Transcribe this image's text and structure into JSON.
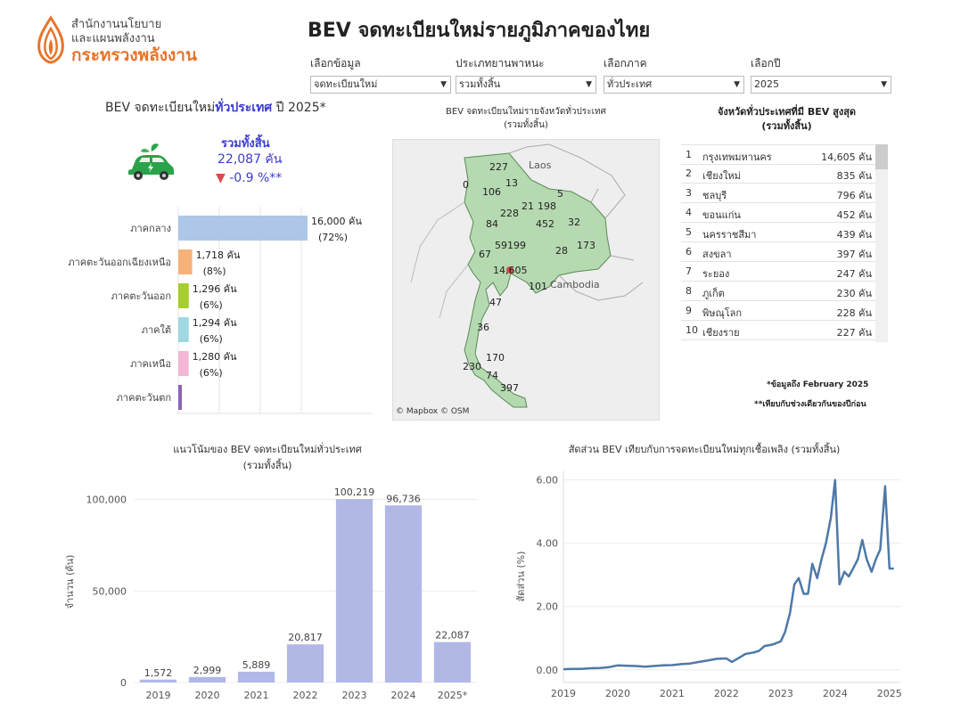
{
  "header": {
    "org_line1": "สำนักงานนโยบาย",
    "org_line2": "และแผนพลังงาน",
    "org_line3": "กระทรวงพลังงาน",
    "title": "BEV จดทะเบียนใหม่รายภูมิภาคของไทย"
  },
  "filters": [
    {
      "label": "เลือกข้อมูล",
      "value": "จดทะเบียนใหม่"
    },
    {
      "label": "ประเภทยานพาหนะ",
      "value": "รวมทั้งสิ้น"
    },
    {
      "label": "เลือกภาค",
      "value": "ทั่วประเทศ"
    },
    {
      "label": "เลือกปี",
      "value": "2025"
    }
  ],
  "kpi": {
    "title_prefix": "BEV จดทะเบียนใหม่",
    "title_highlight": "ทั่วประเทศ",
    "title_suffix": " ปี  2025*",
    "total_label": "รวมทั้งสิ้น",
    "total_value": "22,087 คัน",
    "change": "-0.9  %**",
    "change_symbol": "▼",
    "icon": "electric-car-icon"
  },
  "chart_data": [
    {
      "type": "bar",
      "orientation": "horizontal",
      "categories": [
        "ภาคกลาง",
        "ภาคตะวันออกเฉียงเหนือ",
        "ภาคตะวันออก",
        "ภาคใต้",
        "ภาคเหนือ",
        "ภาคตะวันตก"
      ],
      "values": [
        16000,
        1718,
        1296,
        1294,
        1280,
        100
      ],
      "value_labels": [
        "16,000 คัน",
        "1,718 คัน",
        "1,296 คัน",
        "1,294 คัน",
        "1,280 คัน",
        ""
      ],
      "pct_labels": [
        "(72%)",
        "(8%)",
        "(6%)",
        "(6%)",
        "(6%)",
        ""
      ],
      "colors": [
        "#aec7e8",
        "#f7b27a",
        "#a5cf2d",
        "#9fd8e0",
        "#f4b6d2",
        "#8e63b6"
      ],
      "xlim": [
        0,
        16000
      ]
    },
    {
      "type": "map",
      "title": "BEV จดทะเบียนใหม่รายจังหวัดทั่วประเทศ",
      "subtitle": "(รวมทั้งสิ้น)",
      "labels": [
        {
          "text": "227"
        },
        {
          "text": "0"
        },
        {
          "text": "106"
        },
        {
          "text": "13"
        },
        {
          "text": "5"
        },
        {
          "text": "21"
        },
        {
          "text": "198"
        },
        {
          "text": "228"
        },
        {
          "text": "84"
        },
        {
          "text": "452"
        },
        {
          "text": "32"
        },
        {
          "text": "173"
        },
        {
          "text": "28"
        },
        {
          "text": "59"
        },
        {
          "text": "199"
        },
        {
          "text": "67"
        },
        {
          "text": "14,605"
        },
        {
          "text": "101"
        },
        {
          "text": "47"
        },
        {
          "text": "36"
        },
        {
          "text": "170"
        },
        {
          "text": "230"
        },
        {
          "text": "74"
        },
        {
          "text": "397"
        }
      ],
      "place_labels": [
        "Laos",
        "Cambodia"
      ],
      "credit": "© Mapbox  © OSM"
    },
    {
      "type": "table",
      "title": "จังหวัดทั่วประเทศที่มี BEV สูงสุด",
      "subtitle": "(รวมทั้งสิ้น)",
      "rows": [
        {
          "rank": "1",
          "province": "กรุงเทพมหานคร",
          "value": "14,605 คัน"
        },
        {
          "rank": "2",
          "province": "เชียงใหม่",
          "value": "835 คัน"
        },
        {
          "rank": "3",
          "province": "ชลบุรี",
          "value": "796 คัน"
        },
        {
          "rank": "4",
          "province": "ขอนแก่น",
          "value": "452 คัน"
        },
        {
          "rank": "5",
          "province": "นครราชสีมา",
          "value": "439 คัน"
        },
        {
          "rank": "6",
          "province": "สงขลา",
          "value": "397 คัน"
        },
        {
          "rank": "7",
          "province": "ระยอง",
          "value": "247 คัน"
        },
        {
          "rank": "8",
          "province": "ภูเก็ต",
          "value": "230 คัน"
        },
        {
          "rank": "9",
          "province": "พิษณุโลก",
          "value": "228 คัน"
        },
        {
          "rank": "10",
          "province": "เชียงราย",
          "value": "227 คัน"
        }
      ]
    },
    {
      "type": "bar",
      "title": "แนวโน้มของ BEV จดทะเบียนใหม่ทั่วประเทศ",
      "subtitle": "(รวมทั้งสิ้น)",
      "categories": [
        "2019",
        "2020",
        "2021",
        "2022",
        "2023",
        "2024",
        "2025*"
      ],
      "values": [
        1572,
        2999,
        5889,
        20817,
        100219,
        96736,
        22087
      ],
      "value_labels": [
        "1,572",
        "2,999",
        "5,889",
        "20,817",
        "100,219",
        "96,736",
        "22,087"
      ],
      "ylabel": "จำนวน (คัน)",
      "yticks": [
        "0",
        "50,000",
        "100,000"
      ],
      "ylim": [
        0,
        110000
      ],
      "color": "#b1b8e6"
    },
    {
      "type": "line",
      "title": "สัดส่วน BEV เทียบกับการจดทะเบียนใหม่ทุกเชื้อเพลิง (รวมทั้งสิ้น)",
      "ylabel": "สัดส่วน (%)",
      "yticks": [
        "0.00",
        "2.00",
        "4.00",
        "6.00"
      ],
      "xticks": [
        "2019",
        "2020",
        "2021",
        "2022",
        "2023",
        "2024",
        "2025"
      ],
      "ylim": [
        -0.4,
        6.3
      ],
      "xlim": [
        2019,
        2025.2
      ],
      "color": "#4e79a7",
      "x": [
        2019.0,
        2019.17,
        2019.33,
        2019.5,
        2019.67,
        2019.83,
        2020.0,
        2020.17,
        2020.33,
        2020.5,
        2020.67,
        2020.83,
        2021.0,
        2021.17,
        2021.33,
        2021.5,
        2021.67,
        2021.83,
        2022.0,
        2022.1,
        2022.2,
        2022.35,
        2022.5,
        2022.6,
        2022.7,
        2022.85,
        2023.0,
        2023.08,
        2023.17,
        2023.25,
        2023.33,
        2023.42,
        2023.5,
        2023.58,
        2023.67,
        2023.75,
        2023.83,
        2023.92,
        2024.0,
        2024.08,
        2024.17,
        2024.25,
        2024.33,
        2024.42,
        2024.5,
        2024.58,
        2024.67,
        2024.75,
        2024.83,
        2024.92,
        2025.0,
        2025.08
      ],
      "y": [
        0.02,
        0.03,
        0.03,
        0.05,
        0.06,
        0.08,
        0.14,
        0.13,
        0.12,
        0.1,
        0.12,
        0.14,
        0.15,
        0.18,
        0.2,
        0.25,
        0.3,
        0.35,
        0.36,
        0.25,
        0.35,
        0.5,
        0.55,
        0.6,
        0.75,
        0.8,
        0.9,
        1.2,
        1.8,
        2.7,
        2.9,
        2.4,
        2.4,
        3.35,
        2.9,
        3.5,
        4.0,
        4.8,
        6.0,
        2.7,
        3.1,
        2.95,
        3.2,
        3.5,
        4.1,
        3.5,
        3.1,
        3.5,
        3.8,
        5.8,
        3.2,
        3.2
      ]
    }
  ],
  "notes": {
    "note1": "*ข้อมูลถึง February 2025",
    "note2": "**เทียบกับช่วงเดียวกันของปีก่อน"
  }
}
